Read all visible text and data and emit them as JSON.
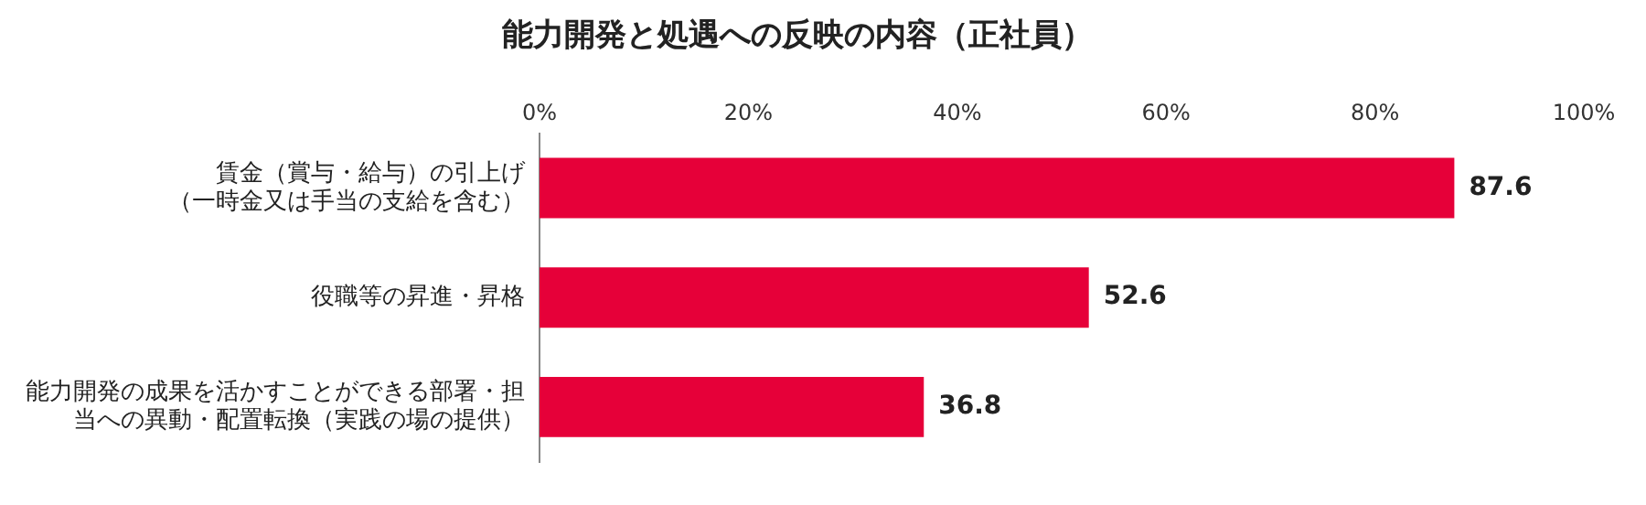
{
  "chart_data": {
    "type": "bar",
    "orientation": "horizontal",
    "title": "能力開発と処遇への反映の内容（正社員）",
    "categories": [
      "賃金（賞与・給与）の引上げ（一時金又は手当の支給を含む）",
      "役職等の昇進・昇格",
      "能力開発の成果を活かすことができる部署・担当への異動・配置転換（実践の場の提供）"
    ],
    "values": [
      87.6,
      52.6,
      36.8
    ],
    "color": "#e60039",
    "data_labels": true,
    "grid": false,
    "xlim": [
      0,
      100
    ],
    "xticks": [
      {
        "value": 0,
        "label": "0%"
      },
      {
        "value": 20,
        "label": "20%"
      },
      {
        "value": 40,
        "label": "40%"
      },
      {
        "value": 60,
        "label": "60%"
      },
      {
        "value": 80,
        "label": "80%"
      },
      {
        "value": 100,
        "label": "100%"
      }
    ]
  }
}
